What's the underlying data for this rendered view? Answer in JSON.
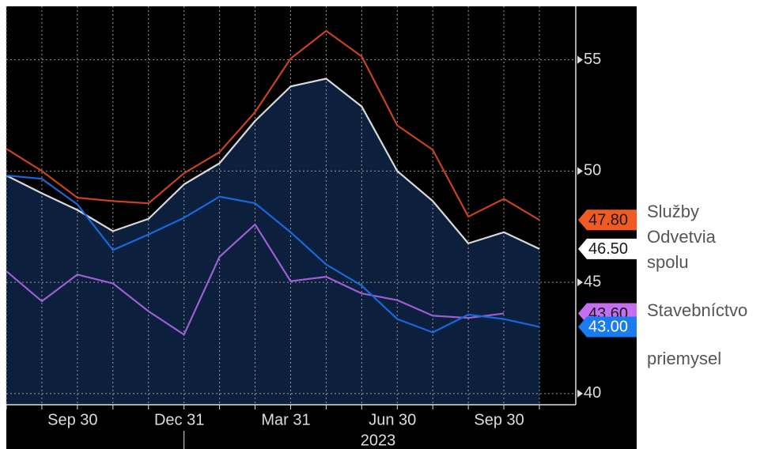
{
  "chart_data": {
    "type": "line",
    "categories": [
      null,
      null,
      "Sep 30",
      null,
      null,
      "Dec 31",
      null,
      null,
      "Mar 31",
      null,
      null,
      "Jun 30",
      null,
      null,
      "Sep 30",
      null
    ],
    "annotations": [
      "2023"
    ],
    "ylim": [
      39.5,
      57.4
    ],
    "yticks": [
      40,
      45,
      50,
      55
    ],
    "grid": true,
    "series": [
      {
        "name": "Služby",
        "color": "#c8421e",
        "tag_color": "#f25a24",
        "tag_text_color": "#1a1a1a",
        "values": [
          51.0,
          50.0,
          48.8,
          48.65,
          48.55,
          49.9,
          50.85,
          52.65,
          55.05,
          56.3,
          55.15,
          52.05,
          50.95,
          47.95,
          48.75,
          47.8
        ],
        "value_labels": [
          null,
          null,
          null,
          null,
          null,
          null,
          null,
          null,
          null,
          null,
          null,
          null,
          null,
          null,
          null,
          "47.80"
        ]
      },
      {
        "name": "Odvetvia spolu",
        "color": "#d9d9d9",
        "fill": "#0c1f3d",
        "tag_color": "#ffffff",
        "tag_text_color": "#1a1a1a",
        "values": [
          49.8,
          49.0,
          48.25,
          47.3,
          47.85,
          49.4,
          50.35,
          52.25,
          53.8,
          54.15,
          52.9,
          50.0,
          48.65,
          46.75,
          47.25,
          46.5
        ],
        "value_labels": [
          null,
          null,
          null,
          null,
          null,
          null,
          null,
          null,
          null,
          null,
          null,
          null,
          null,
          null,
          null,
          "46.50"
        ]
      },
      {
        "name": "Stavebníctvo",
        "color": "#9c5fd2",
        "tag_color": "#c46ff2",
        "tag_text_color": "#1a1a1a",
        "values": [
          45.5,
          44.15,
          45.35,
          44.95,
          43.7,
          42.65,
          46.15,
          47.6,
          45.05,
          45.25,
          44.5,
          44.2,
          43.5,
          43.4,
          43.6,
          null
        ],
        "value_labels": [
          null,
          null,
          null,
          null,
          null,
          null,
          null,
          null,
          null,
          null,
          null,
          null,
          null,
          null,
          "43.60",
          null
        ]
      },
      {
        "name": "priemysel",
        "color": "#1768dc",
        "tag_color": "#1a7cf0",
        "tag_text_color": "#ffffff",
        "values": [
          49.8,
          49.65,
          48.5,
          46.45,
          47.15,
          47.9,
          48.85,
          48.55,
          47.25,
          45.8,
          44.85,
          43.35,
          42.75,
          43.55,
          43.35,
          43.0
        ],
        "value_labels": [
          null,
          null,
          null,
          null,
          null,
          null,
          null,
          null,
          null,
          null,
          null,
          null,
          null,
          null,
          null,
          "43.00"
        ]
      }
    ]
  }
}
